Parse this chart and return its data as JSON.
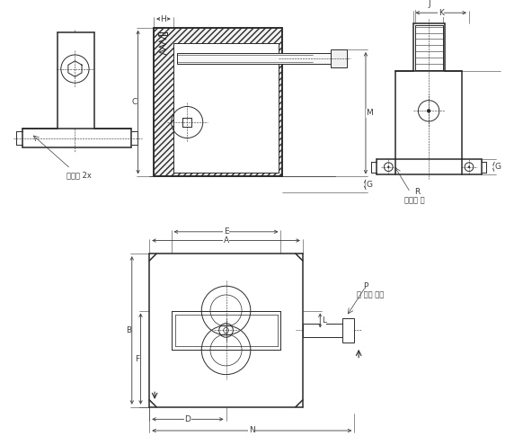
{
  "bg_color": "#ffffff",
  "lc": "#2a2a2a",
  "dc": "#3a3a3a",
  "lw": 0.7,
  "lwt": 1.1,
  "lwd": 0.5,
  "fs": 6.5,
  "labels": {
    "disc": "디스크 2x",
    "thread_pin": "스레드 핀",
    "ball_screw": "볼 압력 나사"
  }
}
